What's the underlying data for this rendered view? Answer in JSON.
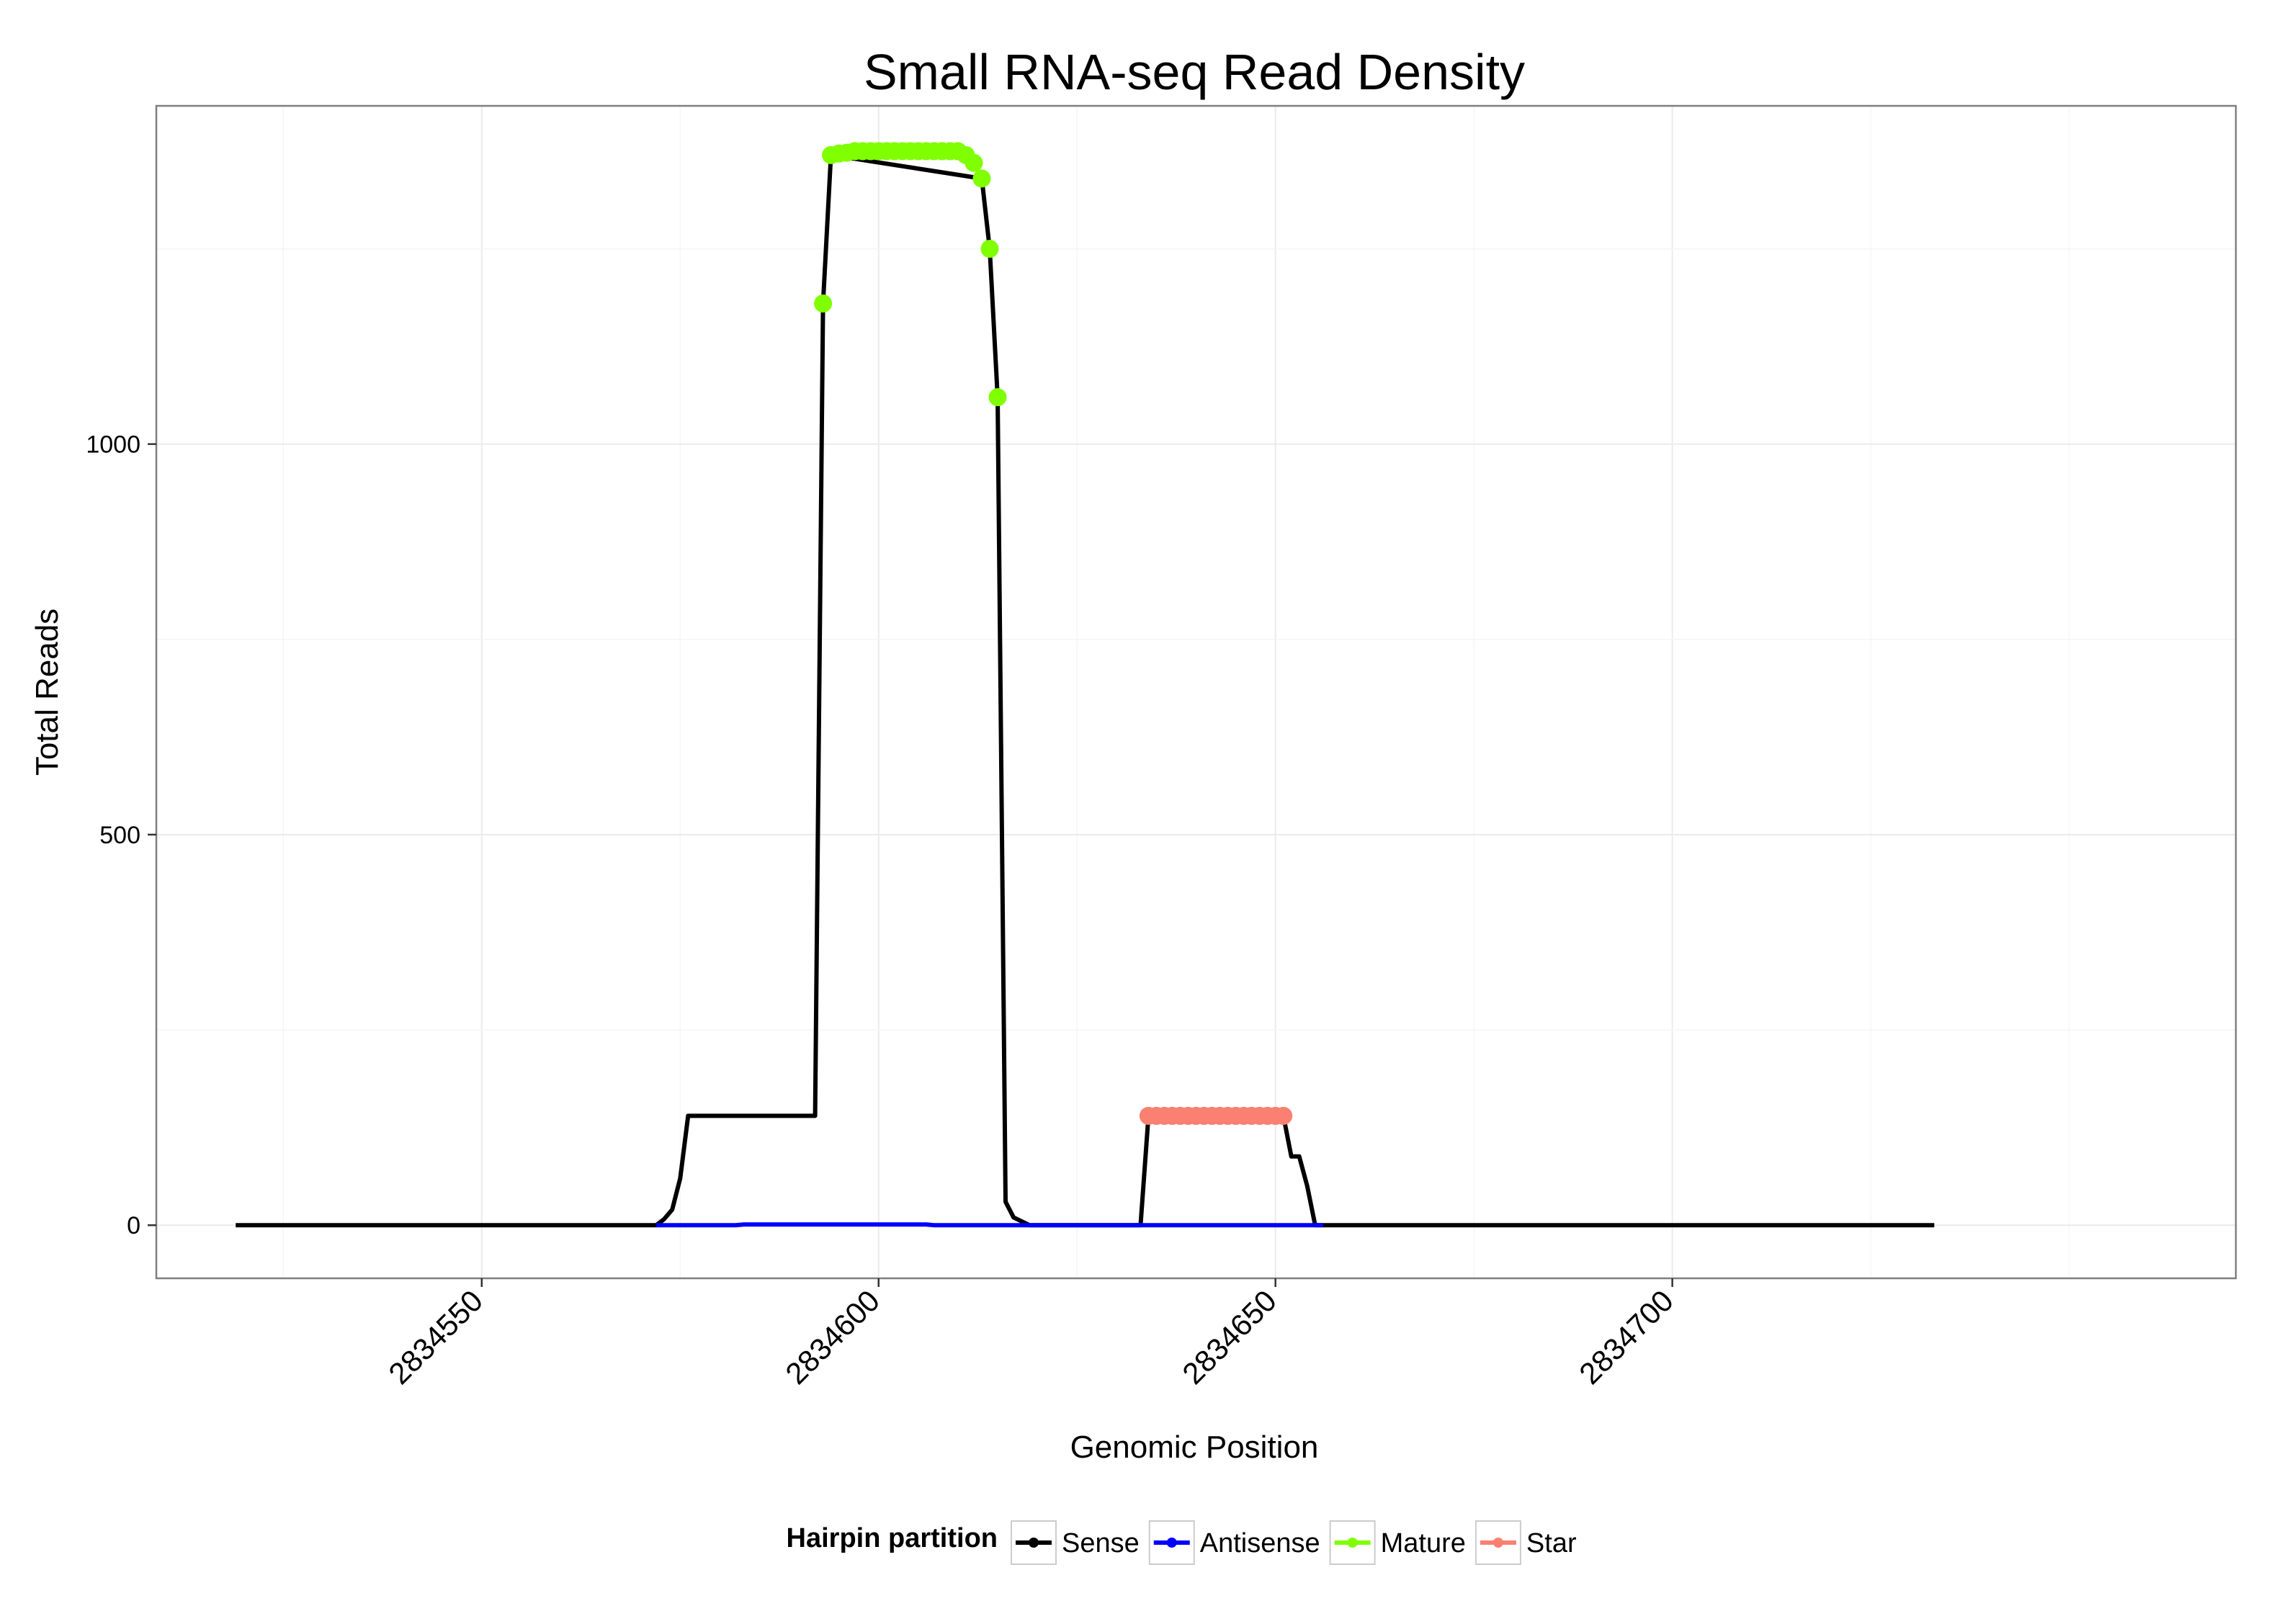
{
  "chart_data": {
    "type": "line",
    "title": "Small RNA-seq Read Density",
    "xlabel": "Genomic Position",
    "ylabel": "Total Reads",
    "xlim": [
      2834509,
      2834771
    ],
    "ylim": [
      -68,
      1433
    ],
    "x_ticks": [
      2834550,
      2834600,
      2834650,
      2834700
    ],
    "x_tick_labels": [
      "2834550",
      "2834600",
      "2834650",
      "2834700"
    ],
    "y_ticks": [
      0,
      500,
      1000
    ],
    "y_tick_labels": [
      "0",
      "500",
      "1000"
    ],
    "grid": true,
    "legend": {
      "title": "Hairpin partition",
      "position": "bottom",
      "entries": [
        "Sense",
        "Antisense",
        "Mature",
        "Star"
      ]
    },
    "series": [
      {
        "name": "Sense",
        "style": "line",
        "color": "#000000",
        "x": [
          2834519,
          2834571,
          2834572,
          2834573,
          2834574,
          2834575,
          2834576,
          2834577,
          2834592,
          2834593,
          2834594,
          2834613,
          2834614,
          2834615,
          2834616,
          2834617,
          2834618,
          2834619,
          2834620,
          2834633,
          2834634,
          2834651,
          2834652,
          2834653,
          2834654,
          2834655,
          2834733
        ],
        "y": [
          0,
          0,
          0,
          8,
          20,
          60,
          140,
          140,
          140,
          1180,
          1370,
          1340,
          1250,
          1060,
          30,
          10,
          5,
          0,
          0,
          0,
          140,
          140,
          88,
          88,
          50,
          0,
          0
        ]
      },
      {
        "name": "Antisense",
        "style": "line",
        "color": "#0000ff",
        "x": [
          2834572,
          2834582,
          2834583,
          2834606,
          2834607,
          2834620,
          2834634,
          2834656
        ],
        "y": [
          0,
          0,
          1,
          1,
          0,
          0,
          0,
          0
        ]
      },
      {
        "name": "Mature",
        "style": "points",
        "color": "#7fff00",
        "x": [
          2834593,
          2834594,
          2834595,
          2834596,
          2834597,
          2834598,
          2834599,
          2834600,
          2834601,
          2834602,
          2834603,
          2834604,
          2834605,
          2834606,
          2834607,
          2834608,
          2834609,
          2834610,
          2834611,
          2834612,
          2834613,
          2834614,
          2834615
        ],
        "y": [
          1180,
          1370,
          1372,
          1373,
          1375,
          1375,
          1375,
          1375,
          1375,
          1375,
          1375,
          1375,
          1375,
          1375,
          1375,
          1375,
          1375,
          1375,
          1370,
          1360,
          1340,
          1250,
          1060
        ]
      },
      {
        "name": "Star",
        "style": "points",
        "color": "#fa8072",
        "x": [
          2834634,
          2834635,
          2834636,
          2834637,
          2834638,
          2834639,
          2834640,
          2834641,
          2834642,
          2834643,
          2834644,
          2834645,
          2834646,
          2834647,
          2834648,
          2834649,
          2834650,
          2834651
        ],
        "y": [
          140,
          140,
          140,
          140,
          140,
          140,
          140,
          140,
          140,
          140,
          140,
          140,
          140,
          140,
          140,
          140,
          140,
          140
        ]
      }
    ]
  }
}
